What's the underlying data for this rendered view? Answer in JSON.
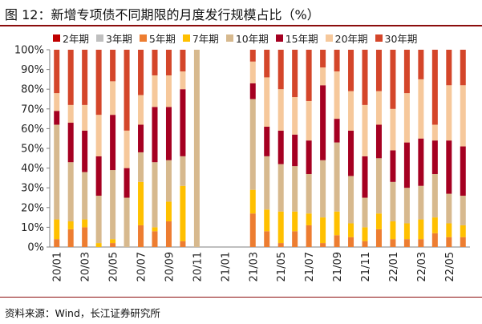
{
  "header": {
    "title": "图 12：新增专项债不同期限的月度发行规模占比（%）"
  },
  "footer": {
    "source": "资料来源：Wind，长江证券研究所"
  },
  "chart_data": {
    "type": "bar",
    "stacked": true,
    "percent": true,
    "ylim": [
      0,
      100
    ],
    "y_ticks": [
      "0%",
      "10%",
      "20%",
      "30%",
      "40%",
      "50%",
      "60%",
      "70%",
      "80%",
      "90%",
      "100%"
    ],
    "grid": false,
    "legend_position": "top",
    "categories": [
      "20/01",
      "20/02",
      "20/03",
      "20/04",
      "20/05",
      "20/06",
      "20/07",
      "20/08",
      "20/09",
      "20/10",
      "20/11",
      "20/12",
      "21/01",
      "21/02",
      "21/03",
      "21/04",
      "21/05",
      "21/06",
      "21/07",
      "21/08",
      "21/09",
      "21/10",
      "21/11",
      "21/12",
      "22/01",
      "22/02",
      "22/03",
      "22/04",
      "22/05",
      "22/06"
    ],
    "x_tick_labels": [
      "20/01",
      "20/03",
      "20/05",
      "20/07",
      "20/09",
      "20/11",
      "21/01",
      "21/03",
      "21/05",
      "21/07",
      "21/09",
      "21/11",
      "22/01",
      "22/03",
      "22/05"
    ],
    "x_tick_indices": [
      0,
      2,
      4,
      6,
      8,
      10,
      12,
      14,
      16,
      18,
      20,
      22,
      24,
      26,
      28
    ],
    "series": [
      {
        "name": "2年期",
        "color": "#c00000",
        "values": [
          0,
          0,
          0,
          0,
          0,
          0,
          0,
          0,
          0,
          0,
          0,
          0,
          0,
          0,
          0,
          0,
          0,
          0,
          0,
          0,
          0,
          0,
          0,
          0,
          0,
          0,
          0,
          0,
          0,
          0
        ]
      },
      {
        "name": "3年期",
        "color": "#bfbfbf",
        "values": [
          0,
          0,
          0,
          0,
          0,
          0,
          0,
          0,
          0,
          0,
          0,
          0,
          0,
          0,
          0,
          0,
          0,
          0,
          0,
          0,
          0,
          0,
          0,
          0,
          0,
          0,
          0,
          0,
          0,
          0
        ]
      },
      {
        "name": "5年期",
        "color": "#ed7d31",
        "values": [
          4,
          9,
          10,
          0,
          2,
          0,
          11,
          8,
          13,
          3,
          0,
          0,
          0,
          0,
          17,
          8,
          2,
          8,
          11,
          2,
          6,
          5,
          3,
          9,
          4,
          4,
          4,
          7,
          5,
          5
        ]
      },
      {
        "name": "7年期",
        "color": "#ffc000",
        "values": [
          10,
          4,
          4,
          2,
          2,
          0,
          22,
          2,
          10,
          28,
          0,
          0,
          0,
          0,
          12,
          11,
          16,
          10,
          6,
          13,
          12,
          7,
          7,
          8,
          9,
          8,
          10,
          8,
          7,
          6
        ]
      },
      {
        "name": "10年期",
        "color": "#d7b98e",
        "values": [
          48,
          30,
          24,
          24,
          35,
          25,
          15,
          33,
          21,
          15,
          100,
          0,
          0,
          0,
          46,
          27,
          24,
          23,
          20,
          29,
          35,
          24,
          15,
          28,
          20,
          18,
          17,
          22,
          15,
          15
        ]
      },
      {
        "name": "15年期",
        "color": "#a50021",
        "values": [
          7,
          20,
          21,
          20,
          28,
          15,
          14,
          28,
          27,
          34,
          0,
          0,
          0,
          0,
          8,
          15,
          17,
          16,
          17,
          38,
          12,
          23,
          21,
          17,
          16,
          23,
          24,
          17,
          27,
          25
        ]
      },
      {
        "name": "20年期",
        "color": "#f6c89b",
        "values": [
          9,
          9,
          13,
          21,
          17,
          19,
          15,
          16,
          16,
          9,
          0,
          0,
          0,
          0,
          11,
          25,
          21,
          19,
          20,
          9,
          24,
          20,
          26,
          17,
          21,
          25,
          30,
          8,
          28,
          31
        ]
      },
      {
        "name": "30年期",
        "color": "#d4462a",
        "values": [
          22,
          28,
          28,
          33,
          16,
          41,
          23,
          13,
          13,
          11,
          0,
          0,
          0,
          0,
          6,
          14,
          20,
          24,
          26,
          9,
          11,
          21,
          28,
          21,
          30,
          22,
          15,
          38,
          18,
          18
        ]
      }
    ]
  }
}
